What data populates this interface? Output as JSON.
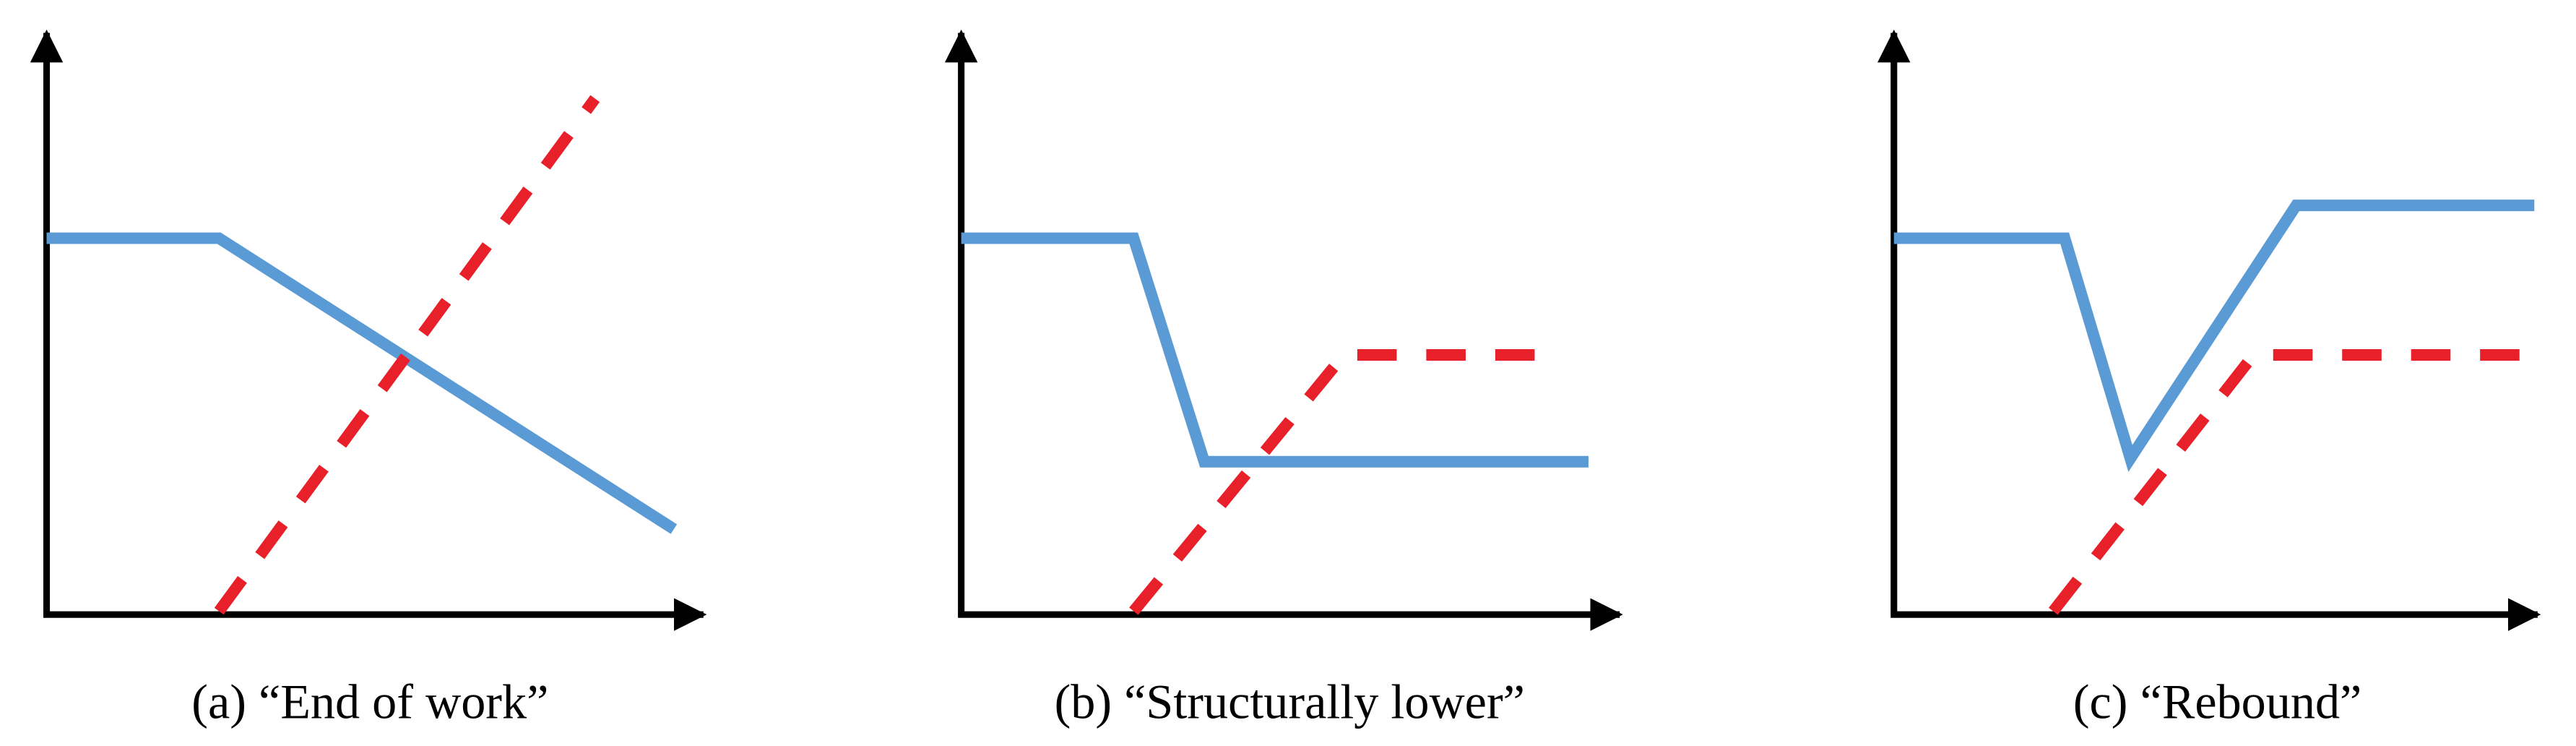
{
  "panels": [
    {
      "label": "(a)",
      "title": "“End of work”"
    },
    {
      "label": "(b)",
      "title": "“Structurally lower”"
    },
    {
      "label": "(c)",
      "title": "“Rebound”"
    }
  ]
}
